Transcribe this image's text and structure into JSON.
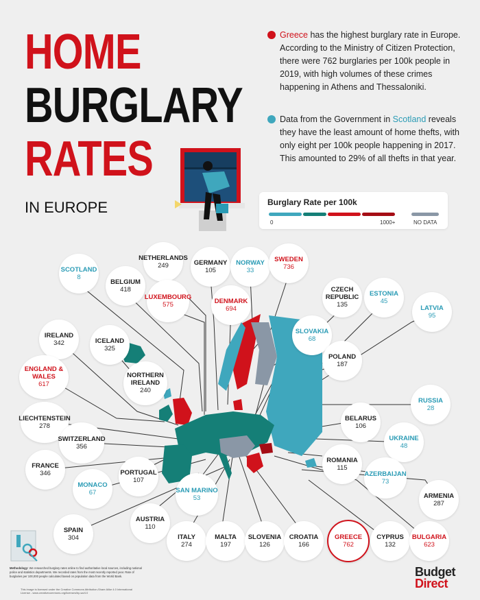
{
  "header": {
    "title_line1": "HOME",
    "title_line2": "BURGLARY",
    "title_line3": "RATES",
    "subtitle": "IN EUROPE"
  },
  "facts": [
    {
      "highlight": "Greece",
      "text": " has the highest burglary rate in Europe. According to the Ministry of Citizen Protection, there were 762 burglaries per 100k people in 2019, with high volumes of these crimes happening in Athens and Thessaloniki."
    },
    {
      "pre": "Data from the Government in ",
      "highlight": "Scotland",
      "text": " reveals they have the least amount of home thefts, with only eight per 100k people happening in 2017. This amounted to 29% of all thefts in that year."
    }
  ],
  "legend": {
    "title": "Burglary Rate per 100k",
    "min_label": "0",
    "max_label": "1000+",
    "nodata_label": "NO DATA"
  },
  "colors": {
    "red": "#d0121b",
    "dark_red": "#a50d15",
    "teal_light": "#3fa7bd",
    "teal_dark": "#157f77",
    "no_data": "#8a97a6"
  },
  "countries": [
    {
      "name": "SCOTLAND",
      "value": "8",
      "color": "teal"
    },
    {
      "name": "BELGIUM",
      "value": "418",
      "color": "dark"
    },
    {
      "name": "NETHERLANDS",
      "value": "249",
      "color": "dark"
    },
    {
      "name": "GERMANY",
      "value": "105",
      "color": "dark"
    },
    {
      "name": "NORWAY",
      "value": "33",
      "color": "teal"
    },
    {
      "name": "SWEDEN",
      "value": "736",
      "color": "red"
    },
    {
      "name": "LUXEMBOURG",
      "value": "575",
      "color": "red"
    },
    {
      "name": "DENMARK",
      "value": "694",
      "color": "red"
    },
    {
      "name": "CZECH REPUBLIC",
      "value": "135",
      "color": "dark"
    },
    {
      "name": "ESTONIA",
      "value": "45",
      "color": "teal"
    },
    {
      "name": "LATVIA",
      "value": "95",
      "color": "teal"
    },
    {
      "name": "IRELAND",
      "value": "342",
      "color": "dark"
    },
    {
      "name": "ICELAND",
      "value": "325",
      "color": "dark"
    },
    {
      "name": "SLOVAKIA",
      "value": "68",
      "color": "teal"
    },
    {
      "name": "ENGLAND & WALES",
      "value": "617",
      "color": "red"
    },
    {
      "name": "NORTHERN IRELAND",
      "value": "240",
      "color": "dark"
    },
    {
      "name": "POLAND",
      "value": "187",
      "color": "dark"
    },
    {
      "name": "RUSSIA",
      "value": "28",
      "color": "teal"
    },
    {
      "name": "LIECHTENSTEIN",
      "value": "278",
      "color": "dark"
    },
    {
      "name": "BELARUS",
      "value": "106",
      "color": "dark"
    },
    {
      "name": "SWITZERLAND",
      "value": "356",
      "color": "dark"
    },
    {
      "name": "UKRAINE",
      "value": "48",
      "color": "teal"
    },
    {
      "name": "FRANCE",
      "value": "346",
      "color": "dark"
    },
    {
      "name": "PORTUGAL",
      "value": "107",
      "color": "dark"
    },
    {
      "name": "ROMANIA",
      "value": "115",
      "color": "dark"
    },
    {
      "name": "MONACO",
      "value": "67",
      "color": "teal"
    },
    {
      "name": "SAN MARINO",
      "value": "53",
      "color": "teal"
    },
    {
      "name": "AZERBAIJAN",
      "value": "73",
      "color": "teal"
    },
    {
      "name": "ARMENIA",
      "value": "287",
      "color": "dark"
    },
    {
      "name": "AUSTRIA",
      "value": "110",
      "color": "dark"
    },
    {
      "name": "SPAIN",
      "value": "304",
      "color": "dark"
    },
    {
      "name": "ITALY",
      "value": "274",
      "color": "dark"
    },
    {
      "name": "MALTA",
      "value": "197",
      "color": "dark"
    },
    {
      "name": "SLOVENIA",
      "value": "126",
      "color": "dark"
    },
    {
      "name": "CROATIA",
      "value": "166",
      "color": "dark"
    },
    {
      "name": "GREECE",
      "value": "762",
      "color": "red"
    },
    {
      "name": "CYPRUS",
      "value": "132",
      "color": "dark"
    },
    {
      "name": "BULGARIA",
      "value": "623",
      "color": "red"
    }
  ],
  "footer": {
    "method_label": "Methodology:",
    "method_text": " We researched burglary rates online to find authoritative local sources, including national police and statistics departments. We recorded rates from the most recently reported year. Rate of burglaries per 100,000 people calculated based on population data from the World Bank.",
    "license": "This image is licensed under the Creative Commons Attribution-Share Alike 4.0 International License - www.creativecommons.org/licenses/by-sa/4.0",
    "logo_line1": "Budget",
    "logo_line2": "Direct"
  }
}
